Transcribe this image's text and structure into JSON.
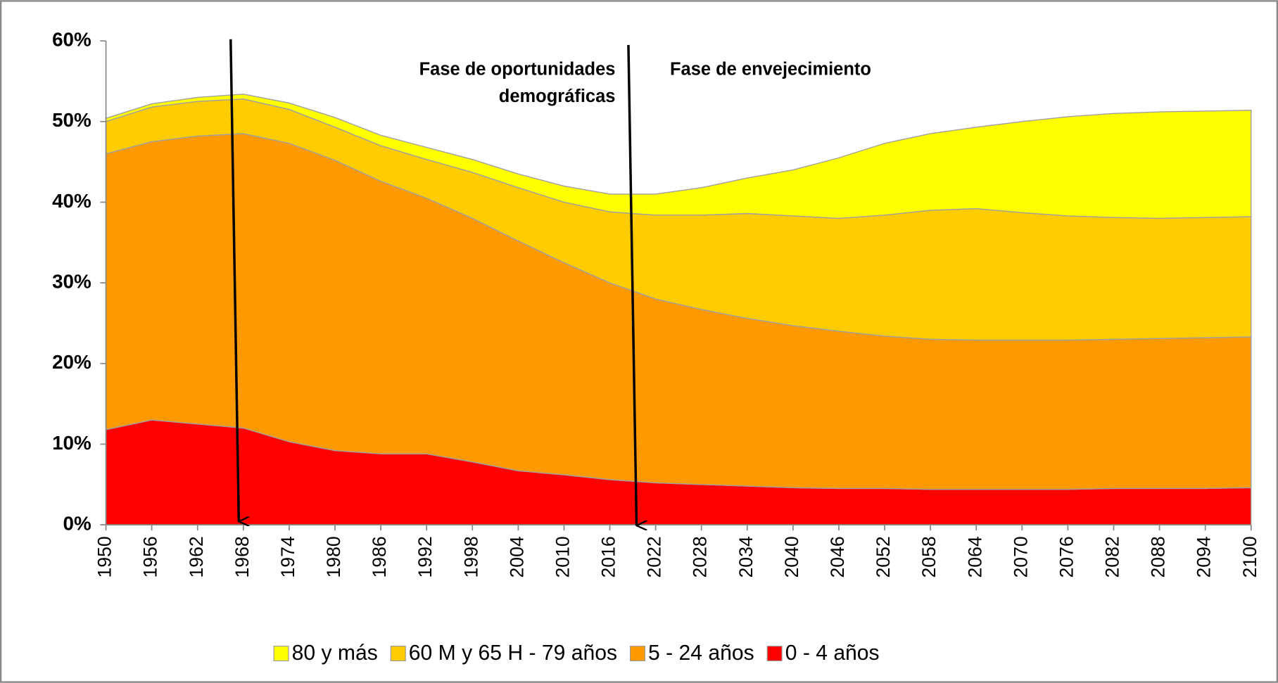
{
  "chart_data": {
    "type": "stacked_area",
    "x": [
      1950,
      1956,
      1962,
      1968,
      1974,
      1980,
      1986,
      1992,
      1998,
      2004,
      2010,
      2016,
      2022,
      2028,
      2034,
      2040,
      2046,
      2052,
      2058,
      2064,
      2070,
      2076,
      2082,
      2088,
      2094,
      2100
    ],
    "series": [
      {
        "name": "0 - 4 años",
        "color": "#ff0000",
        "values": [
          11.8,
          13.0,
          12.5,
          12.0,
          10.3,
          9.2,
          8.8,
          8.8,
          7.8,
          6.7,
          6.2,
          5.6,
          5.2,
          5.0,
          4.8,
          4.6,
          4.5,
          4.5,
          4.4,
          4.4,
          4.4,
          4.4,
          4.5,
          4.5,
          4.5,
          4.6
        ]
      },
      {
        "name": "5 - 24 años",
        "color": "#ff9900",
        "values": [
          34.2,
          34.5,
          35.7,
          36.5,
          37.0,
          36.0,
          33.8,
          31.7,
          30.2,
          28.5,
          26.3,
          24.4,
          22.8,
          21.7,
          20.8,
          20.1,
          19.5,
          18.9,
          18.6,
          18.5,
          18.5,
          18.5,
          18.5,
          18.6,
          18.7,
          18.7
        ]
      },
      {
        "name": "60 M y 65 H - 79 años",
        "color": "#ffcc00",
        "values": [
          4.0,
          4.3,
          4.3,
          4.3,
          4.2,
          4.1,
          4.4,
          4.8,
          5.7,
          6.6,
          7.5,
          8.8,
          10.4,
          11.7,
          13.0,
          13.6,
          14.0,
          15.0,
          16.0,
          16.3,
          15.8,
          15.4,
          15.1,
          14.9,
          14.9,
          14.9
        ]
      },
      {
        "name": "80 y más",
        "color": "#ffff00",
        "values": [
          0.4,
          0.4,
          0.5,
          0.6,
          0.8,
          1.2,
          1.3,
          1.5,
          1.6,
          1.7,
          2.0,
          2.2,
          2.6,
          3.4,
          4.4,
          5.7,
          7.5,
          8.9,
          9.5,
          10.1,
          11.3,
          12.3,
          12.9,
          13.2,
          13.2,
          13.2
        ]
      }
    ],
    "xlim": [
      1950,
      2100
    ],
    "xticks": [
      1950,
      1956,
      1962,
      1968,
      1974,
      1980,
      1986,
      1992,
      1998,
      2004,
      2010,
      2016,
      2022,
      2028,
      2034,
      2040,
      2046,
      2052,
      2058,
      2064,
      2070,
      2076,
      2082,
      2088,
      2094,
      2100
    ],
    "ylim": [
      0,
      60
    ],
    "yticks": [
      {
        "value": 0,
        "label": "0%"
      },
      {
        "value": 10,
        "label": "10%"
      },
      {
        "value": 20,
        "label": "20%"
      },
      {
        "value": 30,
        "label": "30%"
      },
      {
        "value": 40,
        "label": "40%"
      },
      {
        "value": 50,
        "label": "50%"
      },
      {
        "value": 60,
        "label": "60%"
      }
    ],
    "annotations": [
      {
        "lines": [
          "Fase de oportunidades",
          "demográficas"
        ]
      },
      {
        "lines": [
          "Fase de envejecimiento"
        ]
      }
    ],
    "legend": "bottom"
  }
}
